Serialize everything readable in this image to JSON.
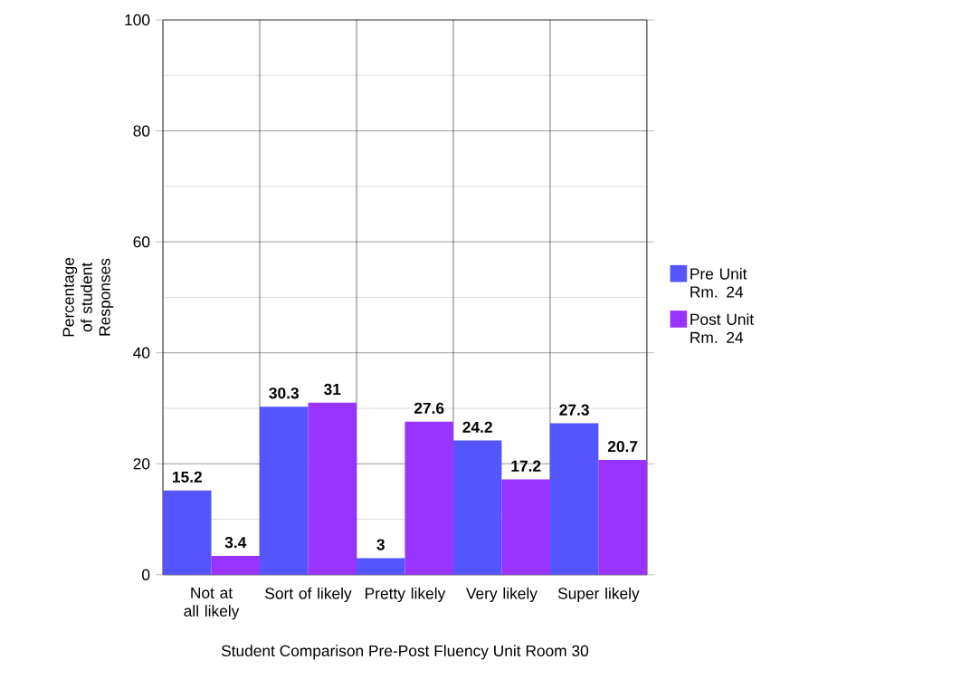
{
  "chart_data": {
    "type": "bar",
    "xlabel": "Student Comparison Pre-Post Fluency Unit Room 30",
    "ylabel": "Percentage of student Responses",
    "categories": [
      "Not at all likely",
      "Sort of likely",
      "Pretty likely",
      "Very likely",
      "Super likely"
    ],
    "series": [
      {
        "name": "Pre Unit Rm. 24",
        "color": "#5555ff",
        "values": [
          15.2,
          30.3,
          3,
          24.2,
          27.3
        ]
      },
      {
        "name": "Post Unit Rm. 24",
        "color": "#9933ff",
        "values": [
          3.4,
          31,
          27.6,
          17.2,
          20.7
        ]
      }
    ],
    "ylim": [
      0,
      100
    ],
    "yticks": [
      0,
      {
        "value": 10,
        "label": null
      },
      20,
      {
        "value": 30,
        "label": null
      },
      40,
      {
        "value": 50,
        "label": null
      },
      60,
      {
        "value": 70,
        "label": null
      },
      80,
      {
        "value": 90,
        "label": null
      },
      100
    ],
    "grid": true,
    "legend": "right",
    "data_labels": true
  }
}
